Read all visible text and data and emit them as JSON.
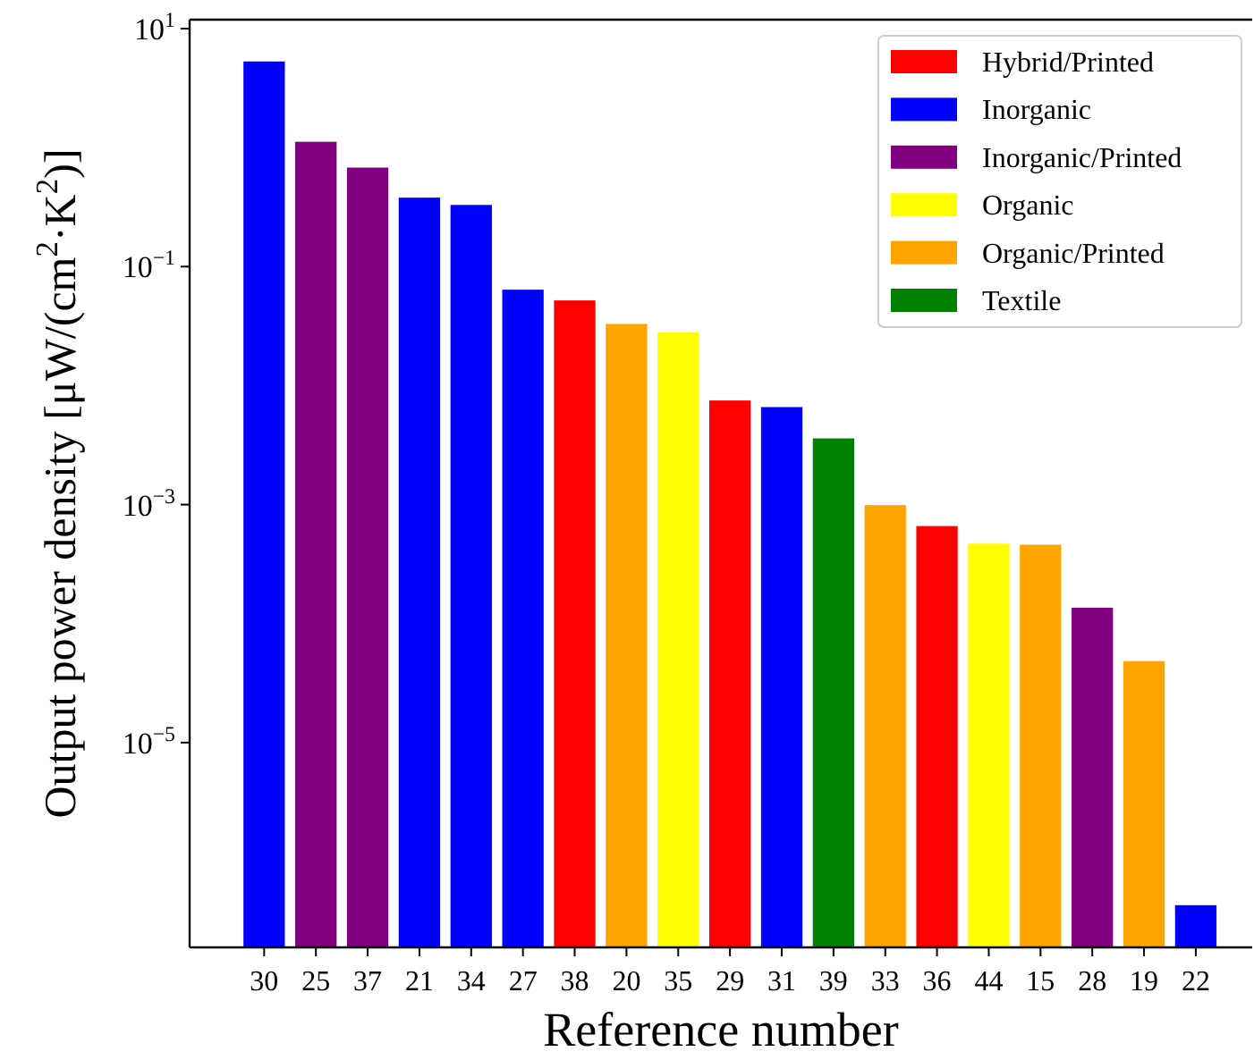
{
  "chart_data": {
    "type": "bar",
    "stacked": true,
    "log": true,
    "xlabel": "Reference number",
    "ylabel": "Output power density [μW/(cm$^{2}$·K$^{2}$)]",
    "categories": [
      "30",
      "25",
      "37",
      "21",
      "34",
      "27",
      "38",
      "20",
      "35",
      "29",
      "31",
      "39",
      "33",
      "36",
      "44",
      "15",
      "28",
      "19",
      "22"
    ],
    "ylim": [
      1.9e-07,
      11.9
    ],
    "yticks": [
      {
        "value": 1e-05,
        "label": "10$^{−5}$"
      },
      {
        "value": 0.001,
        "label": "10$^{−3}$"
      },
      {
        "value": 0.1,
        "label": "10$^{−1}$"
      },
      {
        "value": 10,
        "label": "10$^{1}$"
      }
    ],
    "legend": "top right",
    "grid": false,
    "series": [
      {
        "name": "Hybrid/Printed",
        "color": "#ff0000",
        "values": [
          null,
          null,
          null,
          null,
          null,
          null,
          0.052,
          null,
          null,
          0.0075,
          null,
          null,
          null,
          0.00066,
          null,
          null,
          null,
          null,
          null
        ]
      },
      {
        "name": "Inorganic",
        "color": "#0000ff",
        "values": [
          5.3,
          null,
          null,
          0.38,
          0.33,
          0.064,
          null,
          null,
          null,
          null,
          0.0066,
          null,
          null,
          null,
          null,
          null,
          null,
          null,
          4.3e-07
        ]
      },
      {
        "name": "Inorganic/Printed",
        "color": "#800080",
        "values": [
          null,
          1.12,
          0.68,
          null,
          null,
          null,
          null,
          null,
          null,
          null,
          null,
          null,
          null,
          null,
          null,
          null,
          0.000136,
          null,
          null
        ]
      },
      {
        "name": "Organic",
        "color": "#ffff00",
        "values": [
          null,
          null,
          null,
          null,
          null,
          null,
          null,
          null,
          0.028,
          null,
          null,
          null,
          null,
          null,
          0.00047,
          null,
          null,
          null,
          null
        ]
      },
      {
        "name": "Organic/Printed",
        "color": "#ffa500",
        "values": [
          null,
          null,
          null,
          null,
          null,
          null,
          null,
          0.033,
          null,
          null,
          null,
          null,
          0.00099,
          null,
          null,
          0.00046,
          null,
          4.84e-05,
          null
        ]
      },
      {
        "name": "Textile",
        "color": "#008000",
        "values": [
          null,
          null,
          null,
          null,
          null,
          null,
          null,
          null,
          null,
          null,
          null,
          0.0036,
          null,
          null,
          null,
          null,
          null,
          null,
          null
        ]
      }
    ]
  }
}
